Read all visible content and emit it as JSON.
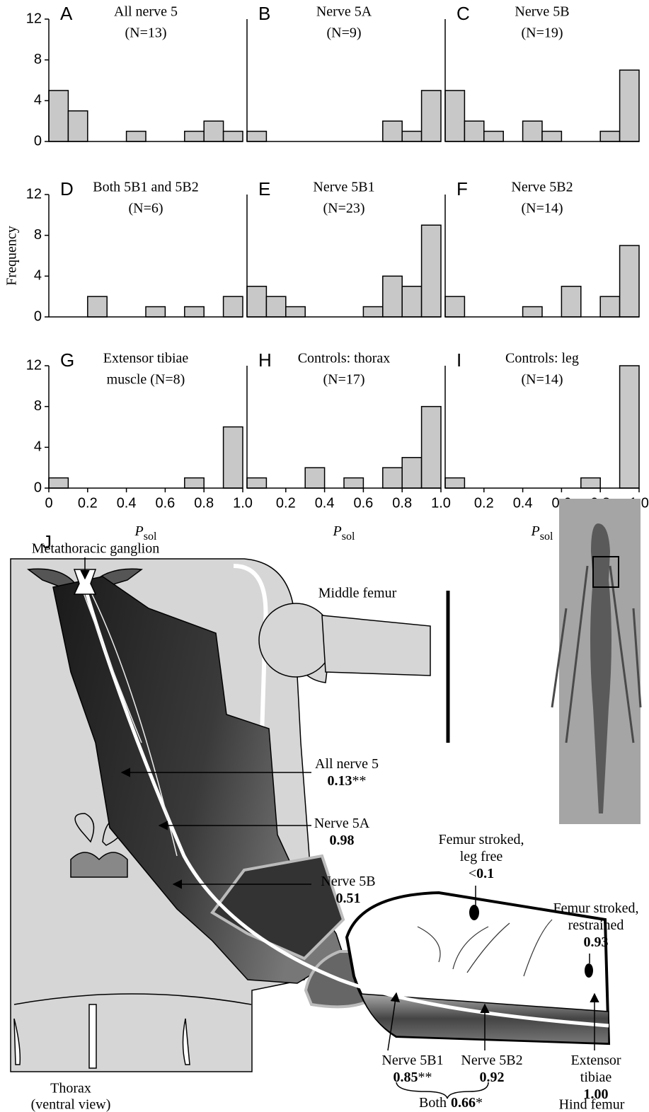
{
  "chart_data": [
    {
      "type": "histogram",
      "panel": "A",
      "title": "All nerve 5",
      "subtitle": "(N=13)",
      "bins": [
        0,
        0.1,
        0.2,
        0.3,
        0.4,
        0.5,
        0.6,
        0.7,
        0.8,
        0.9,
        1
      ],
      "values": [
        5,
        3,
        0,
        0,
        1,
        0,
        0,
        1,
        2,
        1
      ],
      "color": "#c8c8c8",
      "xlim": [
        0,
        1
      ],
      "ylim": [
        0,
        12
      ],
      "yticks": [
        0,
        4,
        8,
        12
      ]
    },
    {
      "type": "histogram",
      "panel": "B",
      "title": "Nerve 5A",
      "subtitle": "(N=9)",
      "bins": [
        0,
        0.1,
        0.2,
        0.3,
        0.4,
        0.5,
        0.6,
        0.7,
        0.8,
        0.9,
        1
      ],
      "values": [
        1,
        0,
        0,
        0,
        0,
        0,
        0,
        2,
        1,
        5
      ],
      "color": "#c8c8c8",
      "xlim": [
        0,
        1
      ],
      "ylim": [
        0,
        12
      ]
    },
    {
      "type": "histogram",
      "panel": "C",
      "title": "Nerve 5B",
      "subtitle": "(N=19)",
      "bins": [
        0,
        0.1,
        0.2,
        0.3,
        0.4,
        0.5,
        0.6,
        0.7,
        0.8,
        0.9,
        1
      ],
      "values": [
        5,
        2,
        1,
        0,
        2,
        1,
        0,
        0,
        1,
        7
      ],
      "color": "#c8c8c8",
      "xlim": [
        0,
        1
      ],
      "ylim": [
        0,
        12
      ]
    },
    {
      "type": "histogram",
      "panel": "D",
      "title": "Both 5B1 and 5B2",
      "subtitle": "(N=6)",
      "ylabel": "Frequency",
      "bins": [
        0,
        0.1,
        0.2,
        0.3,
        0.4,
        0.5,
        0.6,
        0.7,
        0.8,
        0.9,
        1
      ],
      "values": [
        0,
        0,
        2,
        0,
        0,
        1,
        0,
        1,
        0,
        2
      ],
      "color": "#c8c8c8",
      "xlim": [
        0,
        1
      ],
      "ylim": [
        0,
        12
      ],
      "yticks": [
        0,
        4,
        8,
        12
      ]
    },
    {
      "type": "histogram",
      "panel": "E",
      "title": "Nerve 5B1",
      "subtitle": "(N=23)",
      "bins": [
        0,
        0.1,
        0.2,
        0.3,
        0.4,
        0.5,
        0.6,
        0.7,
        0.8,
        0.9,
        1
      ],
      "values": [
        3,
        2,
        1,
        0,
        0,
        0,
        1,
        4,
        3,
        9
      ],
      "color": "#c8c8c8",
      "xlim": [
        0,
        1
      ],
      "ylim": [
        0,
        12
      ]
    },
    {
      "type": "histogram",
      "panel": "F",
      "title": "Nerve 5B2",
      "subtitle": "(N=14)",
      "bins": [
        0,
        0.1,
        0.2,
        0.3,
        0.4,
        0.5,
        0.6,
        0.7,
        0.8,
        0.9,
        1
      ],
      "values": [
        2,
        0,
        0,
        0,
        1,
        0,
        3,
        0,
        2,
        7
      ],
      "color": "#c8c8c8",
      "xlim": [
        0,
        1
      ],
      "ylim": [
        0,
        12
      ]
    },
    {
      "type": "histogram",
      "panel": "G",
      "title": "Extensor tibiae",
      "subtitle": "muscle (N=8)",
      "xlabel": [
        "P",
        "sol"
      ],
      "bins": [
        0,
        0.1,
        0.2,
        0.3,
        0.4,
        0.5,
        0.6,
        0.7,
        0.8,
        0.9,
        1
      ],
      "values": [
        1,
        0,
        0,
        0,
        0,
        0,
        0,
        1,
        0,
        6
      ],
      "color": "#c8c8c8",
      "xlim": [
        0,
        1
      ],
      "ylim": [
        0,
        12
      ],
      "yticks": [
        0,
        4,
        8,
        12
      ],
      "xticks": [
        0,
        0.2,
        0.4,
        0.6,
        0.8,
        {
          "value": 1,
          "label": "1.0"
        }
      ]
    },
    {
      "type": "histogram",
      "panel": "H",
      "title": "Controls: thorax",
      "subtitle": "(N=17)",
      "xlabel": [
        "P",
        "sol"
      ],
      "bins": [
        0,
        0.1,
        0.2,
        0.3,
        0.4,
        0.5,
        0.6,
        0.7,
        0.8,
        0.9,
        1
      ],
      "values": [
        1,
        0,
        0,
        2,
        0,
        1,
        0,
        2,
        3,
        8
      ],
      "color": "#c8c8c8",
      "xlim": [
        0,
        1
      ],
      "ylim": [
        0,
        12
      ],
      "xticks": [
        0.2,
        0.4,
        0.6,
        0.8,
        {
          "value": 1,
          "label": "1.0"
        }
      ]
    },
    {
      "type": "histogram",
      "panel": "I",
      "title": "Controls: leg",
      "subtitle": "(N=14)",
      "xlabel": [
        "P",
        "sol"
      ],
      "bins": [
        0,
        0.1,
        0.2,
        0.3,
        0.4,
        0.5,
        0.6,
        0.7,
        0.8,
        0.9,
        1
      ],
      "values": [
        1,
        0,
        0,
        0,
        0,
        0,
        0,
        1,
        0,
        12
      ],
      "color": "#c8c8c8",
      "xlim": [
        0,
        1
      ],
      "ylim": [
        0,
        12
      ],
      "xticks": [
        0.2,
        0.4,
        0.6,
        0.8,
        {
          "value": 1,
          "label": "1.0"
        }
      ]
    }
  ],
  "diagram": {
    "panel": "J",
    "ganglion": "Metathoracic ganglion",
    "middle_femur": "Middle femur",
    "thorax": [
      "Thorax",
      "(ventral view)"
    ],
    "hind_femur": "Hind femur",
    "annotations": [
      {
        "lines": [
          "All nerve 5"
        ],
        "value": "0.13",
        "suffix": "**"
      },
      {
        "lines": [
          "Nerve 5A"
        ],
        "value": "0.98"
      },
      {
        "lines": [
          "Nerve 5B"
        ],
        "value": "0.51"
      },
      {
        "lines": [
          "Femur stroked,",
          "leg free"
        ],
        "prefix": "<",
        "value": "0.1"
      },
      {
        "lines": [
          "Femur stroked,",
          "restrained"
        ],
        "value": "0.93"
      },
      {
        "lines": [
          "Nerve 5B1"
        ],
        "value": "0.85",
        "suffix": "**"
      },
      {
        "lines": [
          "Nerve 5B2"
        ],
        "value": "0.92"
      },
      {
        "lines": [
          "Extensor",
          "tibiae"
        ],
        "value": "1.00"
      },
      {
        "lines": [
          "Both"
        ],
        "value": "0.66",
        "suffix": "*"
      }
    ]
  }
}
